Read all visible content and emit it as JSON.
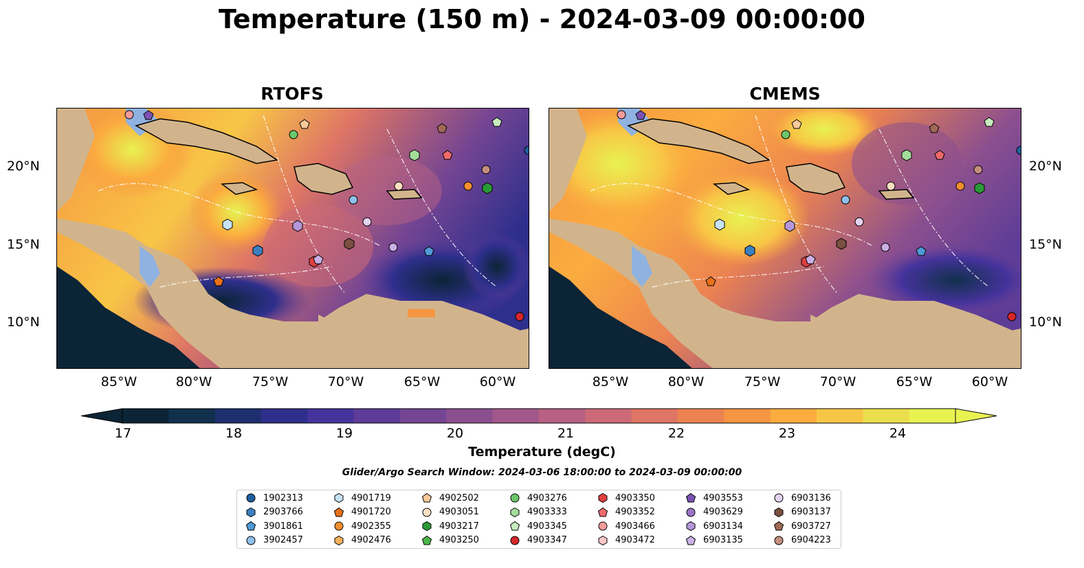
{
  "title": "Temperature (150 m) - 2024-03-09 00:00:00",
  "panels": [
    {
      "title": "RTOFS"
    },
    {
      "title": "CMEMS"
    }
  ],
  "axes": {
    "x_ticks": [
      "85°W",
      "80°W",
      "75°W",
      "70°W",
      "65°W",
      "60°W"
    ],
    "y_ticks": [
      "20°N",
      "15°N",
      "10°N"
    ]
  },
  "colorbar": {
    "label": "Temperature (degC)",
    "ticks": [
      "17",
      "18",
      "19",
      "20",
      "21",
      "22",
      "23",
      "24"
    ],
    "colors": [
      "#0b2436",
      "#11304c",
      "#1d2f6e",
      "#2e2f8c",
      "#45339c",
      "#5d3c97",
      "#744593",
      "#8b4f8f",
      "#a2588a",
      "#b86184",
      "#cc6a77",
      "#de7565",
      "#ec8351",
      "#f69542",
      "#fbac3f",
      "#f8c646",
      "#ecdf4d",
      "#e8f251"
    ]
  },
  "search_window": "Glider/Argo Search Window: 2024-03-06 18:00:00 to 2024-03-09 00:00:00",
  "legend": [
    {
      "id": "1902313",
      "marker": "circle",
      "color": "#1f5f9e"
    },
    {
      "id": "2903766",
      "marker": "hexagon",
      "color": "#3b7fc0"
    },
    {
      "id": "3901861",
      "marker": "pentagon",
      "color": "#4f9ad6"
    },
    {
      "id": "3902457",
      "marker": "circle",
      "color": "#8ec0ea"
    },
    {
      "id": "4901719",
      "marker": "hexagon",
      "color": "#c6e3f7"
    },
    {
      "id": "4901720",
      "marker": "pentagon",
      "color": "#e8701a"
    },
    {
      "id": "4902355",
      "marker": "circle",
      "color": "#f58f2f"
    },
    {
      "id": "4902476",
      "marker": "hexagon",
      "color": "#f7b05c"
    },
    {
      "id": "4902502",
      "marker": "pentagon",
      "color": "#f9c99a"
    },
    {
      "id": "4903051",
      "marker": "circle",
      "color": "#fbdfc0"
    },
    {
      "id": "4903217",
      "marker": "hexagon",
      "color": "#2a9a37"
    },
    {
      "id": "4903250",
      "marker": "pentagon",
      "color": "#4bb84a"
    },
    {
      "id": "4903276",
      "marker": "circle",
      "color": "#6cc66a"
    },
    {
      "id": "4903333",
      "marker": "hexagon",
      "color": "#a3dd9a"
    },
    {
      "id": "4903345",
      "marker": "pentagon",
      "color": "#c8edbf"
    },
    {
      "id": "4903347",
      "marker": "circle",
      "color": "#d62728"
    },
    {
      "id": "4903350",
      "marker": "hexagon",
      "color": "#e04040"
    },
    {
      "id": "4903352",
      "marker": "pentagon",
      "color": "#f06a6a"
    },
    {
      "id": "4903466",
      "marker": "circle",
      "color": "#f59a9a"
    },
    {
      "id": "4903472",
      "marker": "hexagon",
      "color": "#fbc5c5"
    },
    {
      "id": "4903553",
      "marker": "pentagon",
      "color": "#7b52b3"
    },
    {
      "id": "4903629",
      "marker": "circle",
      "color": "#9b74c8"
    },
    {
      "id": "6903134",
      "marker": "hexagon",
      "color": "#b596d8"
    },
    {
      "id": "6903135",
      "marker": "pentagon",
      "color": "#c9b0e5"
    },
    {
      "id": "6903136",
      "marker": "circle",
      "color": "#e4d2f2"
    },
    {
      "id": "6903137",
      "marker": "hexagon",
      "color": "#7a5040"
    },
    {
      "id": "6903727",
      "marker": "pentagon",
      "color": "#a06a55"
    },
    {
      "id": "6904223",
      "marker": "circle",
      "color": "#c58f80"
    }
  ],
  "colors": {
    "land": "#d2b48c",
    "shelf": "#8fb2e0",
    "deep": "#0b2436"
  }
}
